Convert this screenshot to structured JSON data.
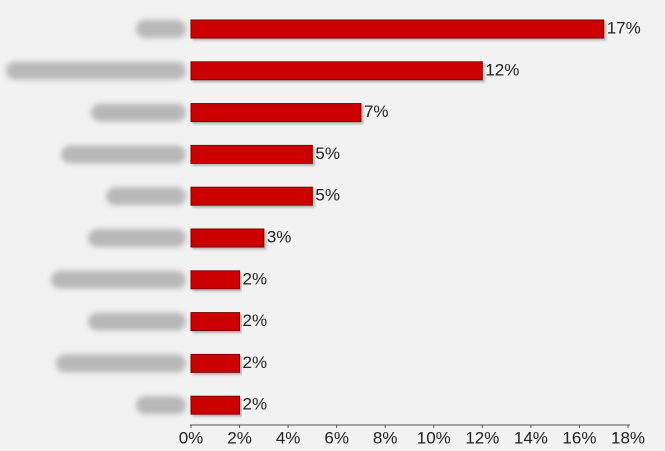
{
  "chart_data": {
    "type": "barh",
    "categories": [
      null,
      null,
      null,
      null,
      null,
      null,
      null,
      null,
      null,
      null
    ],
    "values": [
      17,
      12,
      7,
      5,
      5,
      3,
      2,
      2,
      2,
      2
    ],
    "value_labels": [
      "17%",
      "12%",
      "7%",
      "5%",
      "5%",
      "3%",
      "2%",
      "2%",
      "2%",
      "2%"
    ],
    "color": "#cc0000",
    "xlim": [
      0,
      18
    ],
    "xticks": [
      {
        "value": 0,
        "label": "0%"
      },
      {
        "value": 2,
        "label": "2%"
      },
      {
        "value": 4,
        "label": "4%"
      },
      {
        "value": 6,
        "label": "6%"
      },
      {
        "value": 8,
        "label": "8%"
      },
      {
        "value": 10,
        "label": "10%"
      },
      {
        "value": 12,
        "label": "12%"
      },
      {
        "value": 14,
        "label": "14%"
      },
      {
        "value": 16,
        "label": "16%"
      },
      {
        "value": 18,
        "label": "18%"
      }
    ]
  }
}
